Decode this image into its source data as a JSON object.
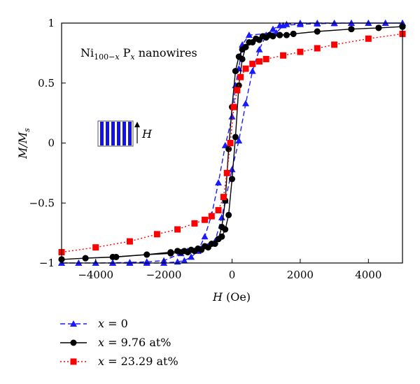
{
  "chart_data": {
    "type": "line",
    "title": "",
    "xlabel": "H (Oe)",
    "ylabel": "M/Ms",
    "xlim": [
      -5000,
      5000
    ],
    "ylim": [
      -1,
      1
    ],
    "x_ticks": [
      {
        "value": -4000,
        "label": "−4000"
      },
      {
        "value": -2000,
        "label": "−2000"
      },
      {
        "value": 0,
        "label": "0"
      },
      {
        "value": 2000,
        "label": "2000"
      },
      {
        "value": 4000,
        "label": "4000"
      }
    ],
    "y_ticks": [
      {
        "value": 1,
        "label": "1"
      },
      {
        "value": 0.5,
        "label": "0.5"
      },
      {
        "value": 0,
        "label": "0"
      },
      {
        "value": -0.5,
        "label": "−0.5"
      },
      {
        "value": -1,
        "label": "−1"
      }
    ],
    "annotation": {
      "base": "Ni",
      "sub1": "100−",
      "sub1_italic": "x",
      "p": " P",
      "sub2_italic": "x",
      "rest": " nanowires"
    },
    "inset_label": "H",
    "legend_position": "bottom",
    "series": [
      {
        "name": "x = 0",
        "legend_italic": "x",
        "legend_rest": " = 0",
        "color": "#1a1aff",
        "marker": "triangle",
        "linestyle": "dashed",
        "x": [
          -5000,
          -4500,
          -4000,
          -3500,
          -3000,
          -2500,
          -2000,
          -1600,
          -1400,
          -1200,
          -1000,
          -800,
          -600,
          -400,
          -200,
          0,
          100,
          200,
          300,
          500,
          1300,
          1500,
          2000,
          2500,
          3000,
          3500,
          4000,
          4500,
          5000,
          5000,
          4500,
          4000,
          3500,
          3000,
          2500,
          2000,
          1600,
          1400,
          1200,
          1000,
          800,
          600,
          400,
          200,
          0,
          -200,
          -300,
          -500,
          -1300,
          -1500,
          -2000,
          -2500,
          -3000,
          -3500,
          -4000,
          -4500,
          -5000
        ],
        "y": [
          -1,
          -1,
          -1,
          -1,
          -1,
          -1,
          -1,
          -0.99,
          -0.98,
          -0.95,
          -0.9,
          -0.78,
          -0.6,
          -0.33,
          -0.02,
          0.22,
          0.48,
          0.62,
          0.82,
          0.9,
          0.92,
          0.98,
          0.99,
          0.995,
          0.998,
          1,
          1,
          1,
          1,
          1,
          1,
          1,
          1,
          1,
          1,
          1,
          0.99,
          0.98,
          0.95,
          0.9,
          0.78,
          0.6,
          0.33,
          0.02,
          -0.22,
          -0.48,
          -0.62,
          -0.82,
          -0.9,
          -0.92,
          -0.98,
          -0.99,
          -0.995,
          -0.998,
          -1,
          -1,
          -1
        ]
      },
      {
        "name": "x = 9.76 at%",
        "legend_italic": "x",
        "legend_rest": " = 9.76  at%",
        "color": "#000000",
        "marker": "circle",
        "linestyle": "solid",
        "x": [
          -5000,
          -4300,
          -3400,
          -2500,
          -1800,
          -1500,
          -1300,
          -1100,
          -900,
          -700,
          -500,
          -400,
          -300,
          -200,
          -100,
          0,
          100,
          200,
          300,
          400,
          600,
          800,
          1000,
          1200,
          1400,
          1600,
          1800,
          2500,
          3500,
          4300,
          5000,
          5000,
          4300,
          3500,
          2500,
          1800,
          1400,
          1100,
          900,
          700,
          500,
          400,
          300,
          200,
          100,
          0,
          -100,
          -200,
          -300,
          -400,
          -600,
          -800,
          -1000,
          -1200,
          -1400,
          -1600,
          -1800,
          -2500,
          -3500,
          -4300,
          -5000
        ],
        "y": [
          -0.97,
          -0.96,
          -0.95,
          -0.93,
          -0.92,
          -0.91,
          -0.91,
          -0.9,
          -0.89,
          -0.87,
          -0.84,
          -0.8,
          -0.7,
          -0.48,
          -0.05,
          0.3,
          0.6,
          0.72,
          0.78,
          0.8,
          0.84,
          0.86,
          0.88,
          0.89,
          0.9,
          0.9,
          0.91,
          0.93,
          0.95,
          0.96,
          0.97,
          0.97,
          0.96,
          0.95,
          0.93,
          0.91,
          0.9,
          0.9,
          0.89,
          0.87,
          0.84,
          0.8,
          0.7,
          0.48,
          0.05,
          -0.3,
          -0.6,
          -0.72,
          -0.78,
          -0.8,
          -0.84,
          -0.86,
          -0.88,
          -0.89,
          -0.9,
          -0.9,
          -0.91,
          -0.93,
          -0.95,
          -0.96,
          -0.97
        ]
      },
      {
        "name": "x = 23.29 at%",
        "legend_italic": "x",
        "legend_rest": " = 23.29  at%",
        "color": "#ff0000",
        "marker": "square",
        "linestyle": "dotted",
        "x": [
          -5000,
          -4000,
          -3000,
          -2200,
          -1600,
          -1100,
          -800,
          -600,
          -400,
          -250,
          -150,
          -50,
          50,
          150,
          250,
          400,
          600,
          800,
          1000,
          1500,
          2000,
          2500,
          3000,
          4000,
          5000
        ],
        "y": [
          -0.91,
          -0.87,
          -0.82,
          -0.76,
          -0.72,
          -0.67,
          -0.64,
          -0.61,
          -0.56,
          -0.45,
          -0.25,
          0,
          0.3,
          0.44,
          0.55,
          0.62,
          0.66,
          0.68,
          0.7,
          0.73,
          0.76,
          0.79,
          0.82,
          0.87,
          0.91
        ]
      }
    ]
  }
}
